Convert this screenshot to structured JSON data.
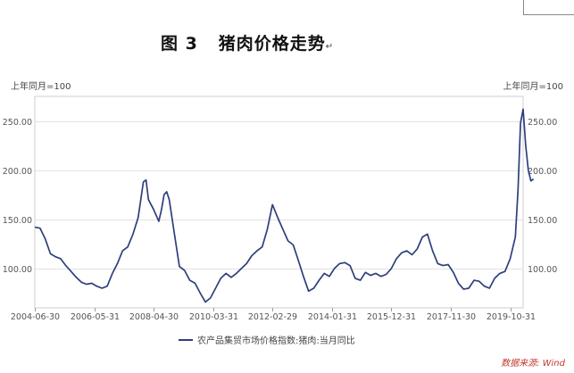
{
  "title_number": "图 3",
  "title_text": "猪肉价格走势",
  "title_mark": "↵",
  "source": "数据来源: Wind",
  "chart_data": {
    "type": "line",
    "ylabel_left": "上年同月=100",
    "ylabel_right": "上年同月=100",
    "ylim": [
      60,
      275
    ],
    "yticks": [
      "100.00",
      "150.00",
      "200.00",
      "250.00"
    ],
    "ytick_values": [
      100,
      150,
      200,
      250
    ],
    "xticks": [
      "2004-06-30",
      "2006-05-31",
      "2008-04-30",
      "2010-03-31",
      "2012-02-29",
      "2014-01-31",
      "2015-12-31",
      "2017-11-30",
      "2019-10-31"
    ],
    "xlim": [
      "2004-06-30",
      "2020-03-31"
    ],
    "grid": "horizontal",
    "legend_position": "bottom",
    "series": [
      {
        "name": "农产品集贸市场价格指数:猪肉:当月同比",
        "color": "#2e3f7c",
        "points": [
          [
            "2004-06-30",
            142
          ],
          [
            "2004-08-31",
            141
          ],
          [
            "2004-10-31",
            130
          ],
          [
            "2004-12-31",
            115
          ],
          [
            "2005-02-28",
            112
          ],
          [
            "2005-04-30",
            110
          ],
          [
            "2005-06-30",
            103
          ],
          [
            "2005-08-31",
            97
          ],
          [
            "2005-10-31",
            91
          ],
          [
            "2005-12-31",
            86
          ],
          [
            "2006-02-28",
            84
          ],
          [
            "2006-04-30",
            85
          ],
          [
            "2006-06-30",
            82
          ],
          [
            "2006-08-31",
            80
          ],
          [
            "2006-10-31",
            82
          ],
          [
            "2006-12-31",
            95
          ],
          [
            "2007-02-28",
            105
          ],
          [
            "2007-04-30",
            118
          ],
          [
            "2007-06-30",
            122
          ],
          [
            "2007-08-31",
            135
          ],
          [
            "2007-10-31",
            152
          ],
          [
            "2007-12-31",
            188
          ],
          [
            "2008-01-31",
            190
          ],
          [
            "2008-02-29",
            170
          ],
          [
            "2008-04-30",
            160
          ],
          [
            "2008-06-30",
            148
          ],
          [
            "2008-07-31",
            160
          ],
          [
            "2008-08-31",
            175
          ],
          [
            "2008-09-30",
            178
          ],
          [
            "2008-10-31",
            170
          ],
          [
            "2008-12-31",
            135
          ],
          [
            "2009-02-28",
            102
          ],
          [
            "2009-04-30",
            98
          ],
          [
            "2009-06-30",
            88
          ],
          [
            "2009-08-31",
            85
          ],
          [
            "2009-10-31",
            75
          ],
          [
            "2009-12-31",
            66
          ],
          [
            "2010-02-28",
            70
          ],
          [
            "2010-04-30",
            80
          ],
          [
            "2010-06-30",
            90
          ],
          [
            "2010-08-31",
            95
          ],
          [
            "2010-10-31",
            91
          ],
          [
            "2010-12-31",
            95
          ],
          [
            "2011-02-28",
            100
          ],
          [
            "2011-04-30",
            105
          ],
          [
            "2011-06-30",
            113
          ],
          [
            "2011-08-31",
            118
          ],
          [
            "2011-10-31",
            122
          ],
          [
            "2011-12-31",
            140
          ],
          [
            "2012-02-29",
            165
          ],
          [
            "2012-04-30",
            152
          ],
          [
            "2012-06-30",
            140
          ],
          [
            "2012-08-31",
            128
          ],
          [
            "2012-10-31",
            124
          ],
          [
            "2012-12-31",
            108
          ],
          [
            "2013-02-28",
            92
          ],
          [
            "2013-04-30",
            77
          ],
          [
            "2013-06-30",
            80
          ],
          [
            "2013-08-31",
            88
          ],
          [
            "2013-10-31",
            95
          ],
          [
            "2013-12-31",
            92
          ],
          [
            "2014-02-28",
            100
          ],
          [
            "2014-04-30",
            105
          ],
          [
            "2014-06-30",
            106
          ],
          [
            "2014-08-31",
            103
          ],
          [
            "2014-10-31",
            90
          ],
          [
            "2014-12-31",
            88
          ],
          [
            "2015-02-28",
            96
          ],
          [
            "2015-04-30",
            93
          ],
          [
            "2015-06-30",
            95
          ],
          [
            "2015-08-31",
            92
          ],
          [
            "2015-10-31",
            94
          ],
          [
            "2015-12-31",
            100
          ],
          [
            "2016-02-29",
            110
          ],
          [
            "2016-04-30",
            116
          ],
          [
            "2016-06-30",
            118
          ],
          [
            "2016-08-31",
            114
          ],
          [
            "2016-10-31",
            120
          ],
          [
            "2016-12-31",
            132
          ],
          [
            "2017-02-28",
            135
          ],
          [
            "2017-04-30",
            118
          ],
          [
            "2017-06-30",
            105
          ],
          [
            "2017-08-31",
            103
          ],
          [
            "2017-10-31",
            104
          ],
          [
            "2017-12-31",
            96
          ],
          [
            "2018-02-28",
            85
          ],
          [
            "2018-04-30",
            79
          ],
          [
            "2018-06-30",
            80
          ],
          [
            "2018-08-31",
            88
          ],
          [
            "2018-10-31",
            87
          ],
          [
            "2018-12-31",
            82
          ],
          [
            "2019-02-28",
            80
          ],
          [
            "2019-04-30",
            90
          ],
          [
            "2019-06-30",
            95
          ],
          [
            "2019-08-31",
            97
          ],
          [
            "2019-10-31",
            110
          ],
          [
            "2019-12-31",
            132
          ],
          [
            "2020-01-31",
            180
          ],
          [
            "2020-02-29",
            248
          ],
          [
            "2020-03-31",
            262
          ],
          [
            "2020-04-30",
            225
          ],
          [
            "2020-05-31",
            200
          ],
          [
            "2020-06-30",
            189
          ],
          [
            "2020-07-31",
            191
          ]
        ]
      }
    ]
  }
}
